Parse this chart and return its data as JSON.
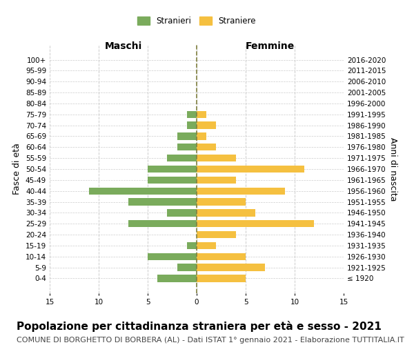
{
  "age_groups": [
    "100+",
    "95-99",
    "90-94",
    "85-89",
    "80-84",
    "75-79",
    "70-74",
    "65-69",
    "60-64",
    "55-59",
    "50-54",
    "45-49",
    "40-44",
    "35-39",
    "30-34",
    "25-29",
    "20-24",
    "15-19",
    "10-14",
    "5-9",
    "0-4"
  ],
  "birth_years": [
    "≤ 1920",
    "1921-1925",
    "1926-1930",
    "1931-1935",
    "1936-1940",
    "1941-1945",
    "1946-1950",
    "1951-1955",
    "1956-1960",
    "1961-1965",
    "1966-1970",
    "1971-1975",
    "1976-1980",
    "1981-1985",
    "1986-1990",
    "1991-1995",
    "1996-2000",
    "2001-2005",
    "2006-2010",
    "2011-2015",
    "2016-2020"
  ],
  "maschi": [
    0,
    0,
    0,
    0,
    0,
    1,
    1,
    2,
    2,
    3,
    5,
    5,
    11,
    7,
    3,
    7,
    0,
    1,
    5,
    2,
    4
  ],
  "femmine": [
    0,
    0,
    0,
    0,
    0,
    1,
    2,
    1,
    2,
    4,
    11,
    4,
    9,
    5,
    6,
    12,
    4,
    2,
    5,
    7,
    5
  ],
  "bar_color_maschi": "#7aab5c",
  "bar_color_femmine": "#f5c040",
  "title": "Popolazione per cittadinanza straniera per età e sesso - 2021",
  "subtitle": "COMUNE DI BORGHETTO DI BORBERA (AL) - Dati ISTAT 1° gennaio 2021 - Elaborazione TUTTITALIA.IT",
  "xlabel_left": "Maschi",
  "xlabel_right": "Femmine",
  "ylabel_left": "Fasce di età",
  "ylabel_right": "Anni di nascita",
  "legend_maschi": "Stranieri",
  "legend_femmine": "Straniere",
  "xlim": 15,
  "background_color": "#ffffff",
  "grid_color": "#cccccc",
  "center_line_color": "#808040",
  "title_fontsize": 11,
  "subtitle_fontsize": 8,
  "tick_fontsize": 7.5,
  "label_fontsize": 9
}
